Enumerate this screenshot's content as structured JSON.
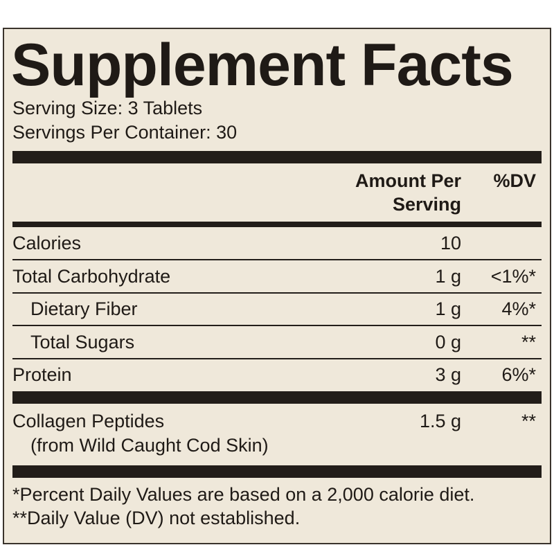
{
  "title": "Supplement Facts",
  "serving_size": "Serving Size: 3 Tablets",
  "servings_per_container": "Servings Per Container: 30",
  "header": {
    "amount": "Amount Per Serving",
    "dv": "%DV"
  },
  "rows": [
    {
      "name": "Calories",
      "amount": "10"
    },
    {
      "name": "Total Carbohydrate",
      "amount": "1 g",
      "dv": "<1%*"
    },
    {
      "name": "Dietary Fiber",
      "amount": "1 g",
      "dv": "4%*",
      "indent": true
    },
    {
      "name": "Total Sugars",
      "amount": "0 g",
      "dv": "**",
      "indent": true
    },
    {
      "name": "Protein",
      "amount": "3 g",
      "dv": "6%*"
    }
  ],
  "special": {
    "name": "Collagen Peptides",
    "source": "(from Wild Caught Cod Skin)",
    "amount": "1.5 g",
    "dv": "**"
  },
  "footnotes": [
    "*Percent Daily Values are based on a 2,000 calorie diet.",
    "**Daily Value (DV) not established."
  ]
}
